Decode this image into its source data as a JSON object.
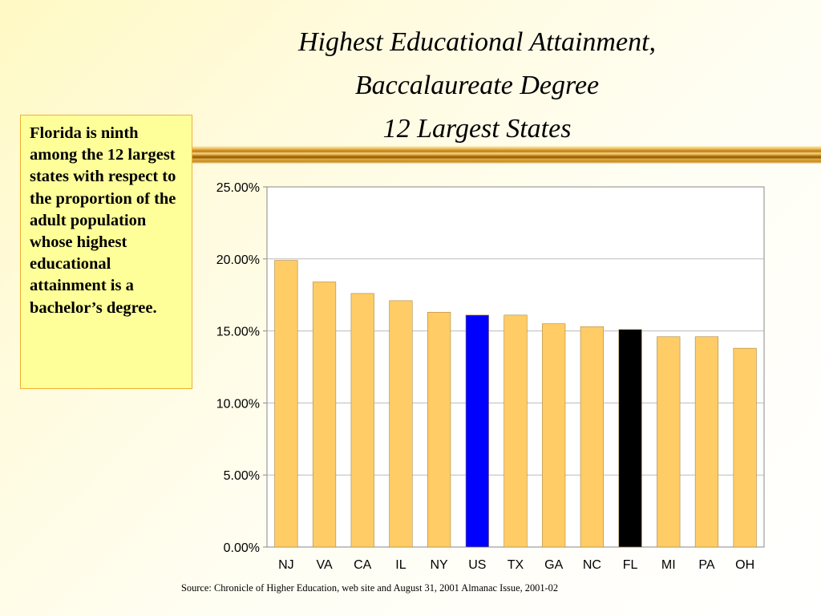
{
  "slide": {
    "title_lines": [
      "Highest Educational Attainment,",
      "Baccalaureate Degree",
      "12 Largest States"
    ],
    "callout": "Florida is ninth among the 12 largest states with respect to the proportion of the adult population whose highest educational attainment is a bachelor’s degree.",
    "source": "Source: Chronicle of Higher Education, web site and August 31, 2001 Almanac Issue, 2001-02"
  },
  "chart_data": {
    "type": "bar",
    "categories": [
      "NJ",
      "VA",
      "CA",
      "IL",
      "NY",
      "US",
      "TX",
      "GA",
      "NC",
      "FL",
      "MI",
      "PA",
      "OH"
    ],
    "values": [
      19.9,
      18.4,
      17.6,
      17.1,
      16.3,
      16.1,
      16.1,
      15.5,
      15.3,
      15.1,
      14.6,
      14.6,
      13.8
    ],
    "ylim": [
      0,
      25
    ],
    "yticks": [
      0,
      5,
      10,
      15,
      20,
      25
    ],
    "ytick_labels": [
      "0.00%",
      "5.00%",
      "10.00%",
      "15.00%",
      "20.00%",
      "25.00%"
    ],
    "grid": true,
    "colors": {
      "default": "#ffcc66",
      "highlight": {
        "US": "#0000ff",
        "FL": "#000000"
      },
      "bar_outline": "#aa8844",
      "gridline": "#bbbbbb",
      "plot_border": "#888888",
      "plot_background": "#ffffff"
    }
  }
}
